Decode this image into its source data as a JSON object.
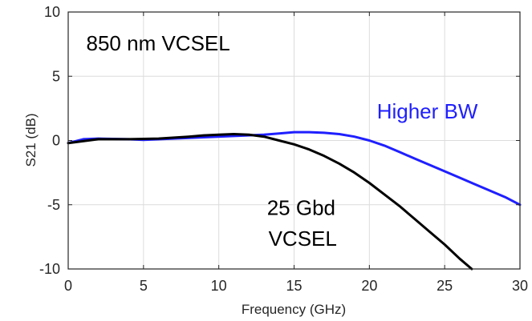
{
  "chart_data": {
    "type": "line",
    "xlabel": "Frequency (GHz)",
    "ylabel": "S21 (dB)",
    "xlim": [
      0,
      30
    ],
    "ylim": [
      -10,
      10
    ],
    "xticks": [
      0,
      5,
      10,
      15,
      20,
      25,
      30
    ],
    "yticks": [
      -10,
      -5,
      0,
      5,
      10
    ],
    "grid": true,
    "series": [
      {
        "color": "#1f1fff",
        "x": [
          0,
          1,
          2,
          4,
          5,
          7,
          9,
          11,
          13,
          14,
          15,
          16,
          17,
          18,
          19,
          20,
          21,
          22,
          23,
          24,
          25,
          26,
          27,
          28,
          29,
          30
        ],
        "y": [
          -0.2,
          0.1,
          0.15,
          0.1,
          0.05,
          0.15,
          0.25,
          0.35,
          0.45,
          0.55,
          0.65,
          0.65,
          0.6,
          0.5,
          0.3,
          0.0,
          -0.4,
          -0.9,
          -1.4,
          -1.9,
          -2.4,
          -2.9,
          -3.4,
          -3.9,
          -4.4,
          -5.0
        ]
      },
      {
        "color": "#000000",
        "x": [
          0,
          2,
          4,
          6,
          8,
          9,
          10,
          11,
          12,
          13,
          14,
          15,
          16,
          17,
          18,
          19,
          20,
          21,
          22,
          23,
          24,
          25,
          26,
          26.8
        ],
        "y": [
          -0.2,
          0.1,
          0.1,
          0.15,
          0.3,
          0.4,
          0.45,
          0.5,
          0.45,
          0.3,
          0.0,
          -0.3,
          -0.7,
          -1.2,
          -1.8,
          -2.5,
          -3.3,
          -4.2,
          -5.1,
          -6.1,
          -7.1,
          -8.1,
          -9.2,
          -10.0
        ]
      }
    ],
    "annotations": [
      {
        "text": "850 nm VCSEL",
        "x": 1.2,
        "y": 7.0,
        "color": "#000000"
      },
      {
        "text": "Higher BW",
        "x": 20.5,
        "y": 1.7,
        "color": "#1f1fff"
      },
      {
        "text": "25 Gbd",
        "x": 13.2,
        "y": -5.8,
        "color": "#000000"
      },
      {
        "text": "VCSEL",
        "x": 13.3,
        "y": -8.2,
        "color": "#000000"
      }
    ]
  }
}
